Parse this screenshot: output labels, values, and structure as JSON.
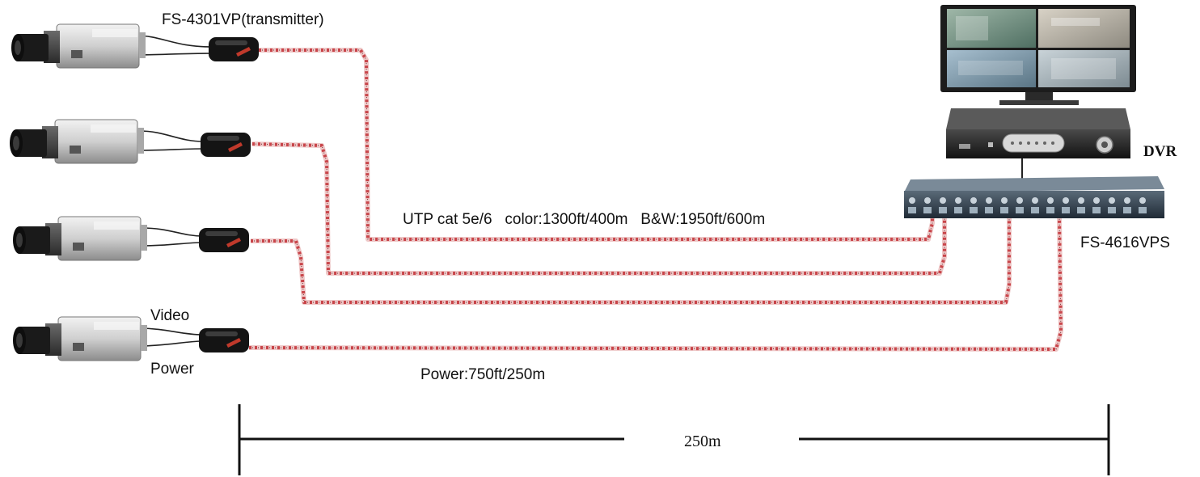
{
  "labels": {
    "transmitter": "FS-4301VP(transmitter)",
    "cable_spec": "UTP cat 5e/6   color:1300ft/400m   B&W:1950ft/600m",
    "video": "Video",
    "power": "Power",
    "power_spec": "Power:750ft/250m",
    "dvr": "DVR",
    "receiver": "FS-4616VPS",
    "distance": "250m"
  },
  "colors": {
    "cable_red": "#c8454a",
    "cable_light": "#eec8c8",
    "camera_body": "#d9d9d9",
    "lens": "#1a1a1a"
  },
  "devices": {
    "cameras": [
      {
        "name": "camera-1-icon"
      },
      {
        "name": "camera-2-icon"
      },
      {
        "name": "camera-3-icon"
      },
      {
        "name": "camera-4-icon"
      }
    ],
    "baluns": [
      {
        "name": "balun-1-icon"
      },
      {
        "name": "balun-2-icon"
      },
      {
        "name": "balun-3-icon"
      },
      {
        "name": "balun-4-icon"
      }
    ]
  }
}
